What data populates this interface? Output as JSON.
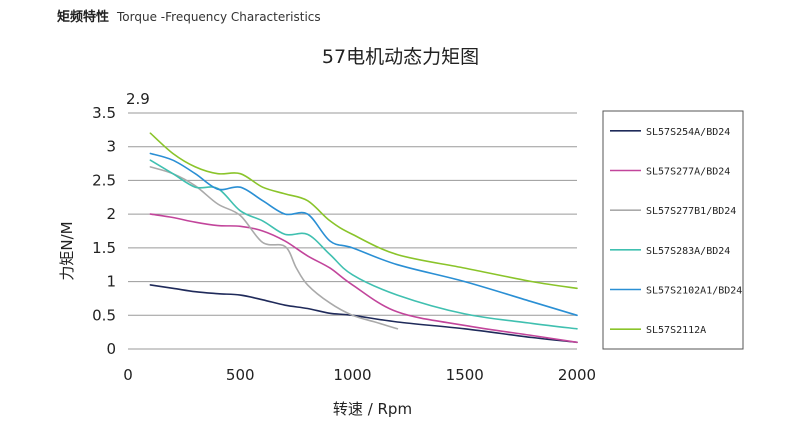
{
  "header": {
    "title_zh": "矩频特性",
    "title_en": "Torque -Frequency Characteristics"
  },
  "chart_data": {
    "type": "line",
    "title": "57电机动态力矩图",
    "xlabel": "转速 / Rpm",
    "ylabel": "力矩N/M",
    "xlim": [
      0,
      2000
    ],
    "ylim": [
      0,
      3.5
    ],
    "xticks": [
      "0",
      "500",
      "1000",
      "1500",
      "2000"
    ],
    "yticks": [
      "0",
      "0.5",
      "1",
      "1.5",
      "2",
      "2.5",
      "3",
      "3.5"
    ],
    "ymax_label": "2.9",
    "grid": "horizontal",
    "legend_position": "right",
    "series": [
      {
        "name": "SL57S254A/BD24",
        "color": "#1f2a5a",
        "x": [
          100,
          200,
          300,
          400,
          500,
          600,
          700,
          800,
          900,
          1000,
          1200,
          1500,
          1800,
          2000
        ],
        "y": [
          0.95,
          0.9,
          0.85,
          0.82,
          0.8,
          0.73,
          0.65,
          0.6,
          0.53,
          0.5,
          0.4,
          0.3,
          0.17,
          0.1
        ]
      },
      {
        "name": "SL57S277A/BD24",
        "color": "#c2459b",
        "x": [
          100,
          200,
          300,
          400,
          500,
          600,
          700,
          800,
          900,
          1000,
          1200,
          1500,
          1800,
          2000
        ],
        "y": [
          2.0,
          1.95,
          1.88,
          1.83,
          1.82,
          1.75,
          1.6,
          1.38,
          1.2,
          0.95,
          0.55,
          0.35,
          0.2,
          0.1
        ]
      },
      {
        "name": "SL57S277B1/BD24",
        "color": "#aaaaaa",
        "x": [
          100,
          200,
          300,
          400,
          500,
          600,
          700,
          750,
          800,
          900,
          1000,
          1100,
          1200
        ],
        "y": [
          2.7,
          2.6,
          2.42,
          2.15,
          1.98,
          1.58,
          1.52,
          1.2,
          0.95,
          0.68,
          0.5,
          0.4,
          0.3
        ]
      },
      {
        "name": "SL57S283A/BD24",
        "color": "#40c0b0",
        "x": [
          100,
          200,
          300,
          400,
          500,
          600,
          700,
          800,
          900,
          1000,
          1200,
          1500,
          1800,
          2000
        ],
        "y": [
          2.8,
          2.6,
          2.4,
          2.38,
          2.05,
          1.9,
          1.7,
          1.7,
          1.4,
          1.1,
          0.8,
          0.52,
          0.38,
          0.3
        ]
      },
      {
        "name": "SL57S2102A1/BD24",
        "color": "#2a8fd4",
        "x": [
          100,
          200,
          300,
          400,
          500,
          600,
          700,
          800,
          900,
          1000,
          1200,
          1500,
          1800,
          2000
        ],
        "y": [
          2.9,
          2.8,
          2.6,
          2.37,
          2.4,
          2.2,
          2.0,
          2.0,
          1.6,
          1.5,
          1.25,
          1.0,
          0.7,
          0.5
        ]
      },
      {
        "name": "SL57S2112A",
        "color": "#8ac42a",
        "x": [
          100,
          200,
          300,
          400,
          500,
          600,
          700,
          800,
          900,
          1000,
          1200,
          1500,
          1800,
          2000
        ],
        "y": [
          3.2,
          2.9,
          2.7,
          2.6,
          2.6,
          2.4,
          2.3,
          2.2,
          1.9,
          1.7,
          1.4,
          1.2,
          1.0,
          0.9
        ]
      }
    ]
  }
}
